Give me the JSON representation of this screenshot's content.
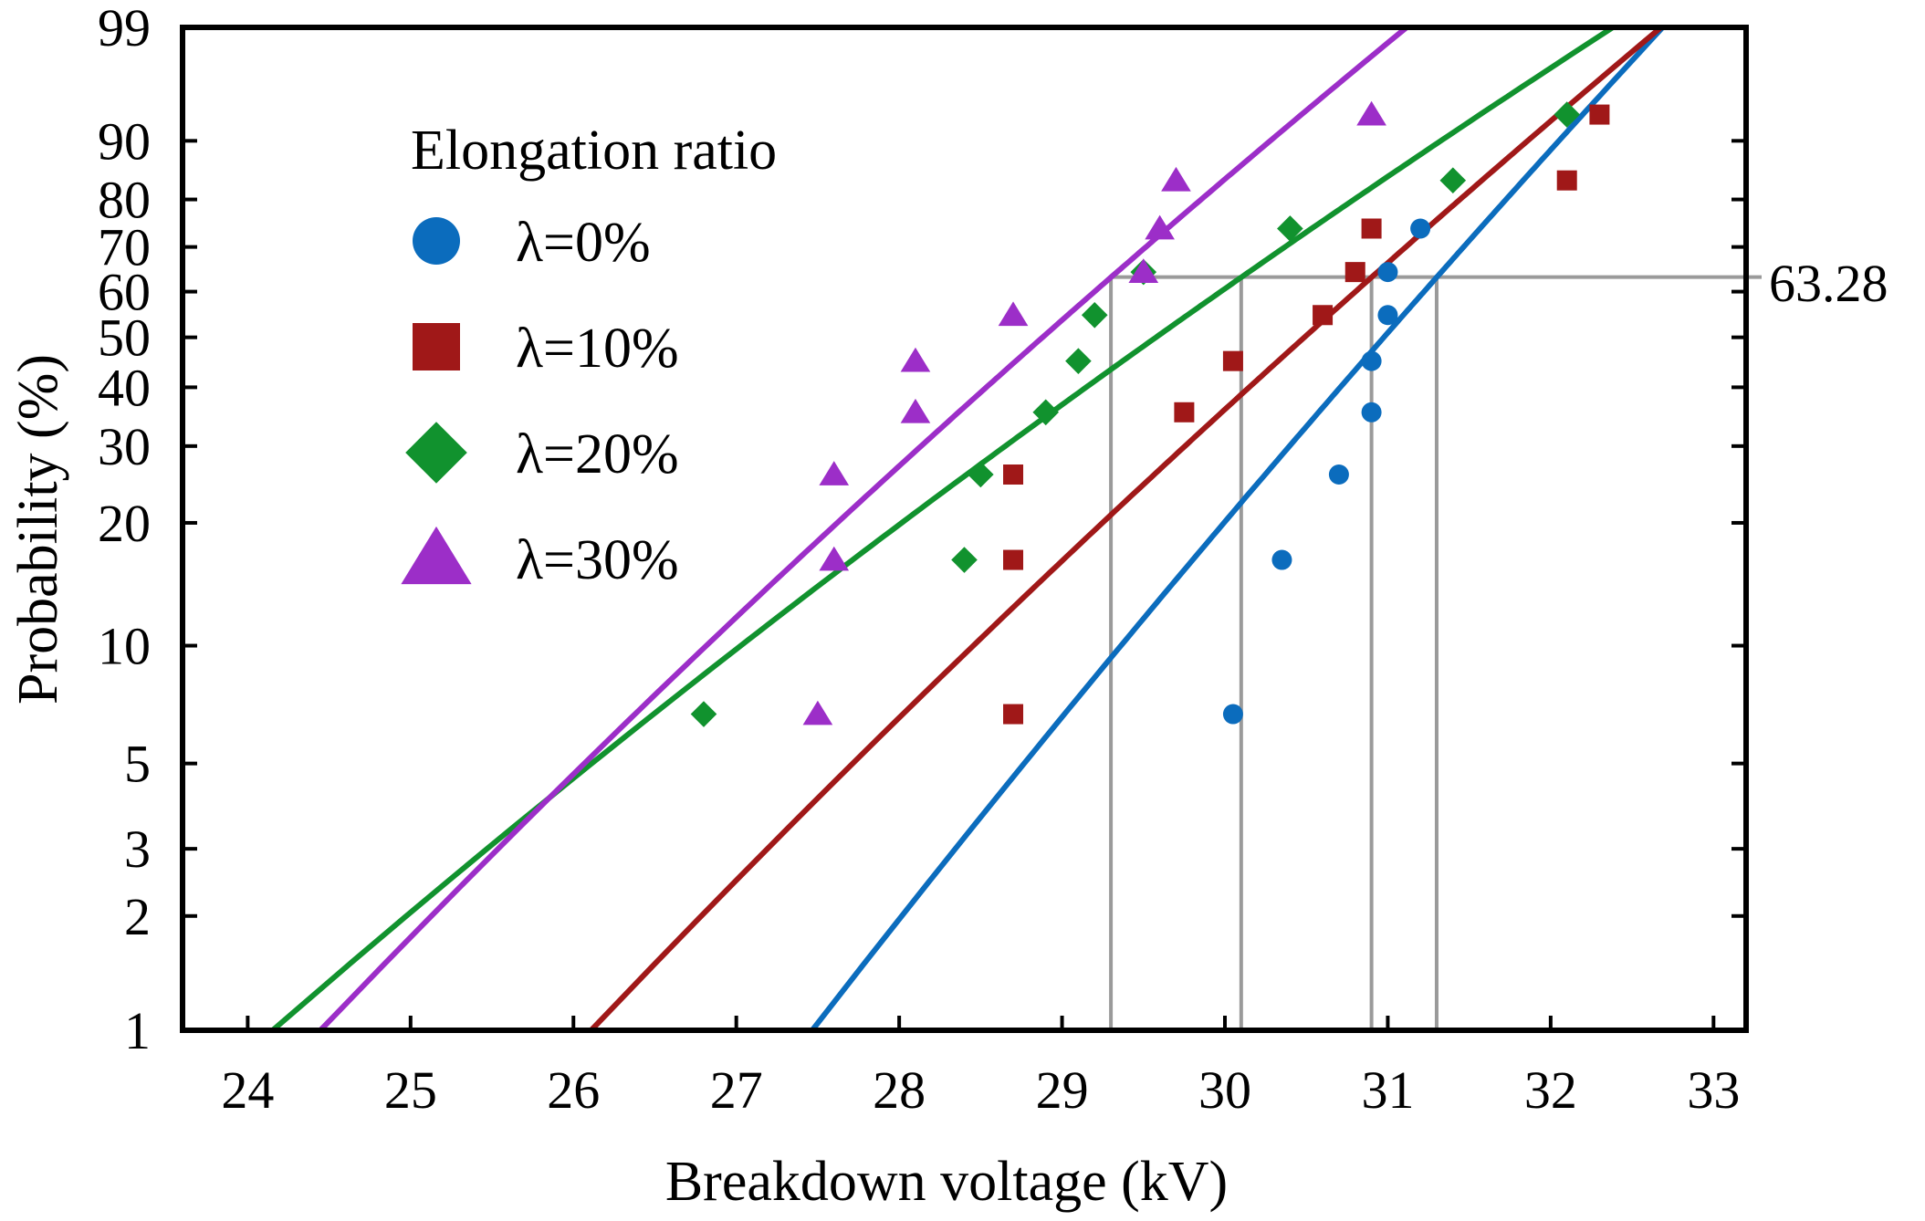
{
  "chart_data": {
    "type": "scatter",
    "subtype": "weibull-probability-plot",
    "title": "",
    "xlabel": "Breakdown voltage (kV)",
    "ylabel": "Probability (%)",
    "xlim": [
      23.6,
      33.2
    ],
    "ylim": [
      1,
      99
    ],
    "x_ticks": [
      24,
      25,
      26,
      27,
      28,
      29,
      30,
      31,
      32,
      33
    ],
    "y_ticks": [
      1,
      2,
      3,
      5,
      10,
      20,
      30,
      40,
      50,
      60,
      70,
      80,
      90,
      99
    ],
    "legend": {
      "title": "Elongation ratio",
      "position": "top-left"
    },
    "annotation": {
      "label": "63.28",
      "probability": 63.28,
      "scale_voltages": [
        29.3,
        30.1,
        30.9,
        31.3
      ]
    },
    "series": [
      {
        "name": "λ=0%",
        "color": "#0b6cbd",
        "marker": "circle",
        "points": [
          [
            30.05,
            6.7
          ],
          [
            30.35,
            16.3
          ],
          [
            30.7,
            25.9
          ],
          [
            30.9,
            35.5
          ],
          [
            30.9,
            45.1
          ],
          [
            31.0,
            54.8
          ],
          [
            31.0,
            64.4
          ],
          [
            31.2,
            74.0
          ]
        ],
        "fit": {
          "scale": 31.3,
          "shape": 35.2
        }
      },
      {
        "name": "λ=10%",
        "color": "#a01818",
        "marker": "square",
        "points": [
          [
            28.7,
            6.7
          ],
          [
            28.7,
            16.3
          ],
          [
            28.7,
            25.9
          ],
          [
            29.75,
            35.5
          ],
          [
            30.05,
            45.1
          ],
          [
            30.6,
            54.8
          ],
          [
            30.8,
            64.4
          ],
          [
            30.9,
            74.0
          ],
          [
            32.1,
            83.6
          ],
          [
            32.3,
            93.3
          ]
        ],
        "fit": {
          "scale": 30.9,
          "shape": 27.3
        }
      },
      {
        "name": "λ=20%",
        "color": "#11922e",
        "marker": "diamond",
        "points": [
          [
            26.8,
            6.7
          ],
          [
            28.4,
            16.3
          ],
          [
            28.5,
            25.9
          ],
          [
            28.9,
            35.5
          ],
          [
            29.1,
            45.1
          ],
          [
            29.2,
            54.8
          ],
          [
            29.5,
            64.4
          ],
          [
            30.4,
            74.0
          ],
          [
            31.4,
            83.6
          ],
          [
            32.1,
            93.3
          ]
        ],
        "fit": {
          "scale": 30.1,
          "shape": 20.9
        }
      },
      {
        "name": "λ=30%",
        "color": "#9c2ec8",
        "marker": "triangle",
        "points": [
          [
            27.5,
            6.7
          ],
          [
            27.6,
            16.3
          ],
          [
            27.6,
            25.9
          ],
          [
            28.1,
            35.5
          ],
          [
            28.1,
            45.1
          ],
          [
            28.7,
            54.8
          ],
          [
            29.5,
            64.4
          ],
          [
            29.6,
            74.0
          ],
          [
            29.7,
            83.6
          ],
          [
            30.9,
            93.3
          ]
        ],
        "fit": {
          "scale": 29.3,
          "shape": 25.4
        }
      }
    ]
  }
}
